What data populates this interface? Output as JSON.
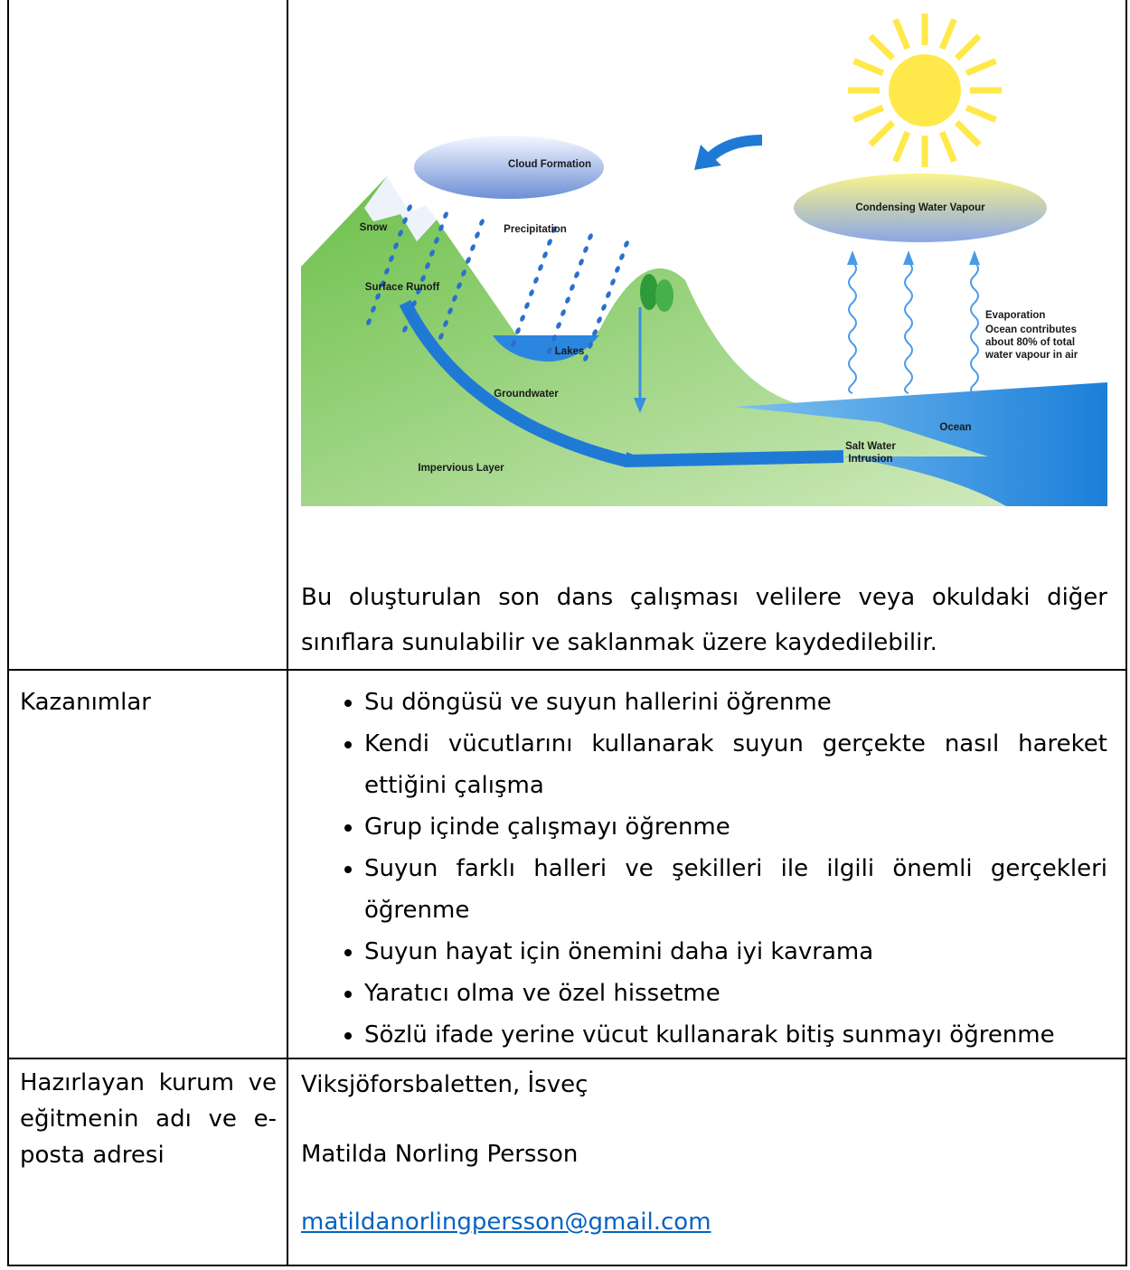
{
  "diagram": {
    "labels": {
      "cloud_formation": "Cloud Formation",
      "snow": "Snow",
      "precipitation": "Precipitation",
      "condensing": "Condensing Water Vapour",
      "surface_runoff": "Surface Runoff",
      "lakes": "Lakes",
      "evaporation": [
        "Evaporation",
        "Ocean contributes",
        "about 80% of total",
        "water vapour in air"
      ],
      "groundwater": "Groundwater",
      "ocean": "Ocean",
      "salt_water": [
        "Salt Water",
        "Intrusion"
      ],
      "impervious": "Impervious Layer"
    }
  },
  "description": "Bu oluşturulan son dans çalışması velilere veya okuldaki diğer sınıflara sunulabilir ve saklanmak üzere kaydedilebilir.",
  "outcomes": {
    "label": "Kazanımlar",
    "items": [
      "Su döngüsü ve suyun hallerini öğrenme",
      "Kendi vücutlarını kullanarak suyun gerçekte nasıl hareket ettiğini çalışma",
      "Grup içinde çalışmayı öğrenme",
      "Suyun farklı halleri ve şekilleri ile ilgili önemli gerçekleri öğrenme",
      "Suyun hayat için önemini daha iyi kavrama",
      "Yaratıcı olma ve özel hissetme",
      "Sözlü ifade yerine vücut kullanarak bitiş sunmayı öğrenme"
    ]
  },
  "author": {
    "label": "Hazırlayan kurum ve eğitmenin adı ve e-posta adresi",
    "institution": "Viksjöforsbaletten, İsveç",
    "name": "Matilda Norling Persson",
    "email": "matildanorlingpersson@gmail.com"
  }
}
